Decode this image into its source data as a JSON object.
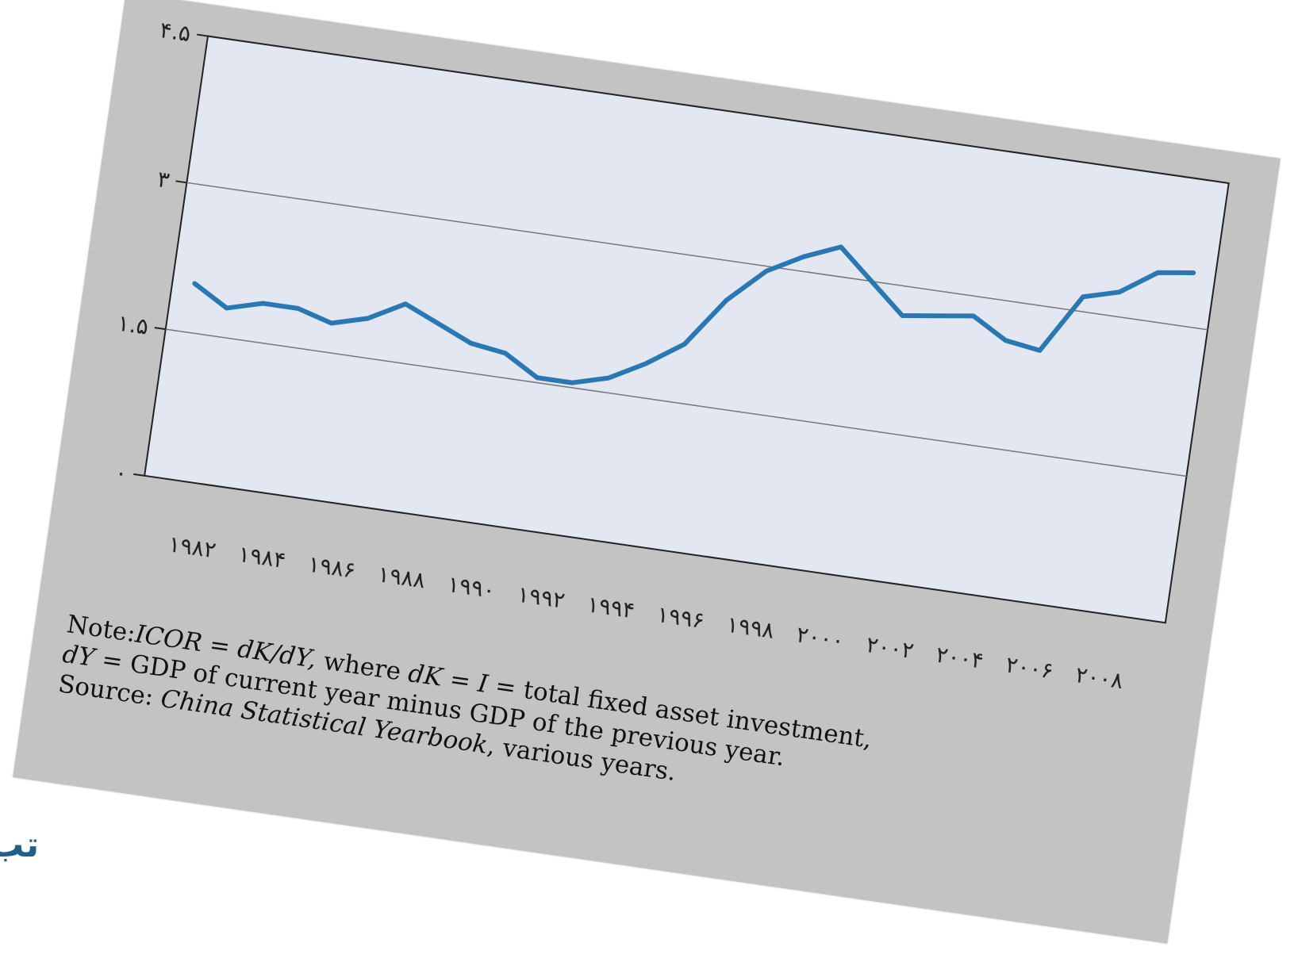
{
  "chart_data": {
    "type": "line",
    "title": "",
    "xlabel": "",
    "ylabel": "",
    "ylim": [
      0,
      4.5
    ],
    "grid": true,
    "y_ticks": [
      {
        "value": 0,
        "label": "۰"
      },
      {
        "value": 1.5,
        "label": "۱.۵"
      },
      {
        "value": 3,
        "label": "۳"
      },
      {
        "value": 4.5,
        "label": "۴.۵"
      }
    ],
    "x_ticks": [
      "۱۹۸۲",
      "۱۹۸۴",
      "۱۹۸۶",
      "۱۹۸۸",
      "۱۹۹۰",
      "۱۹۹۲",
      "۱۹۹۴",
      "۱۹۹۶",
      "۱۹۹۸",
      "۲۰۰۰",
      "۲۰۰۲",
      "۲۰۰۴",
      "۲۰۰۶",
      "۲۰۰۸"
    ],
    "series": [
      {
        "color": "#2a78b2",
        "x": [
          1981,
          1982,
          1983,
          1984,
          1985,
          1986,
          1987,
          1988,
          1989,
          1990,
          1991,
          1992,
          1993,
          1994,
          1995,
          1996,
          1997,
          1998,
          1999,
          2000,
          2001,
          2002,
          2003,
          2004,
          2005,
          2006,
          2007,
          2008,
          2009
        ],
        "y": [
          2.0,
          1.8,
          1.9,
          1.9,
          1.8,
          1.9,
          2.1,
          1.95,
          1.8,
          1.75,
          1.55,
          1.55,
          1.65,
          1.85,
          2.1,
          2.6,
          2.95,
          3.15,
          3.3,
          3.0,
          2.7,
          2.75,
          2.8,
          2.6,
          2.55,
          3.15,
          3.25,
          3.5,
          3.55
        ]
      }
    ]
  },
  "notes": {
    "line1_prefix": "Note:",
    "line1_formula": "ICOR = dK/dY,",
    "line1_mid": " where ",
    "line1_dk": "dK",
    "line1_eq": " = ",
    "line1_i": "I",
    "line1_rest": " = total fixed asset investment,",
    "line2_dy": "dY",
    "line2_rest": " = GDP of current year minus GDP of the previous year.",
    "line3_prefix": "Source: ",
    "line3_book": "China Statistical Yearbook",
    "line3_rest": ", various years."
  },
  "corner_text": "تب"
}
